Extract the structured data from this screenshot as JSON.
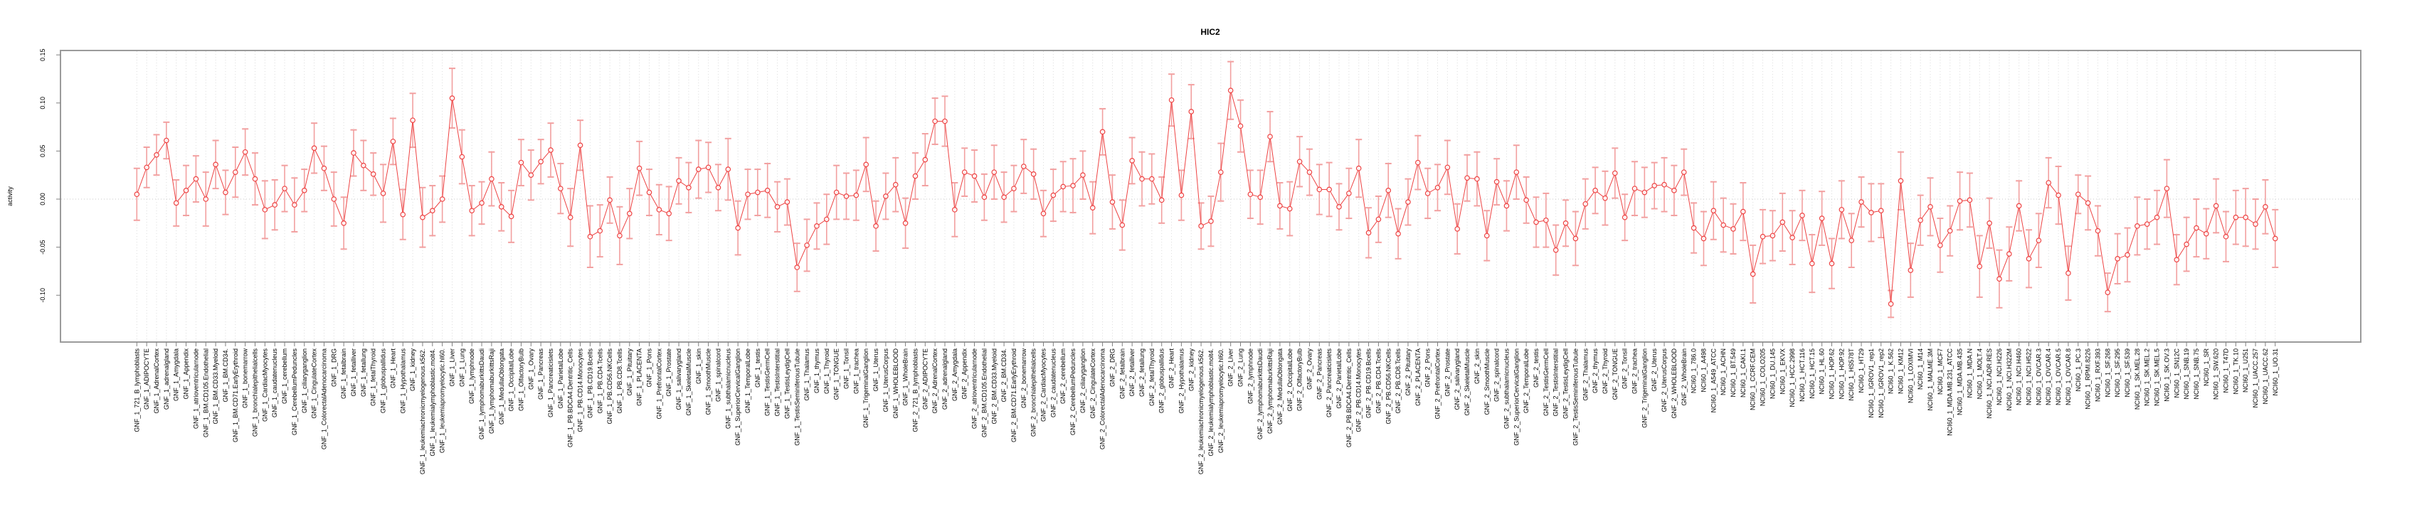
{
  "chart_data": {
    "type": "line",
    "title": "HIC2",
    "xlabel": "",
    "ylabel": "activity",
    "ylim": [
      -0.149,
      0.151
    ],
    "yticks": [
      0.15,
      0.1,
      0.05,
      0.0,
      -0.05,
      -0.1
    ],
    "ytick_labels": [
      "0.15",
      "0.10",
      "0.05",
      "0.00",
      "-0.05",
      "-0.10"
    ],
    "grid": "dotted vertical line per category, dotted horizontal line at 0",
    "legend": "none",
    "style": {
      "point_color": "#ee4343",
      "line_color": "#ee4343",
      "errorbar_color": "#f2a0a0",
      "grid_color": "#dcdcdc",
      "zero_line_color": "#c8c8c8",
      "box_color": "#9b9b9b",
      "tick_color": "#808080",
      "label_color": "#000000"
    },
    "categories": [
      "GNF_1_721_B_lymphoblasts",
      "GNF_1_ADIPOCYTE",
      "GNF_1_AdrenalCortex",
      "GNF_1_adrenalgland",
      "GNF_1_Amygdala",
      "GNF_1_Appendix",
      "GNF_1_atrioventricularnode",
      "GNF_1_BM.CD105.Endothelial",
      "GNF_1_BM.CD33.Myeloid",
      "GNF_1_BM.CD34.",
      "GNF_1_BM.CD71.EarlyErythroid",
      "GNF_1_bonemarrow",
      "GNF_1_bronchialepithelialcells",
      "GNF_1_CardiacMyocytes",
      "GNF_1_caudatenucleus",
      "GNF_1_cerebellum",
      "GNF_1_CerebellumPeduncles",
      "GNF_1_ciliaryganglion",
      "GNF_1_CingulateCortex",
      "GNF_1_ColorectalAdenocarcinoma",
      "GNF_1_DRG",
      "GNF_1_fetalbrain",
      "GNF_1_fetalliver",
      "GNF_1_fetallung",
      "GNF_1_fetalThyroid",
      "GNF_1_globuspallidus",
      "GNF_1_Heart",
      "GNF_1_Hypothalamus",
      "GNF_1_kidney",
      "GNF_1_leukemiachronicmyelogenous.k562.",
      "GNF_1_leukemialymphoblastic.molt4.",
      "GNF_1_leukemiapromyelocytic.hl60.",
      "GNF_1_Liver",
      "GNF_1_Lung",
      "GNF_1_lymphnode",
      "GNF_1_lymphomaburkittsDaudi",
      "GNF_1_lymphomaburkittsRaji",
      "GNF_1_MedullaOblongata",
      "GNF_1_OccipitalLobe",
      "GNF_1_OlfactoryBulb",
      "GNF_1_Ovary",
      "GNF_1_Pancreas",
      "GNF_1_Pancreaticislets",
      "GNF_1_ParietalLobe",
      "GNF_1_PB.BDCA4.Dentritic_Cells",
      "GNF_1_PB.CD14.Monocytes",
      "GNF_1_PB.CD19.Bcells",
      "GNF_1_PB.CD4.Tcells",
      "GNF_1_PB.CD56.NKCells",
      "GNF_1_PB.CD8.Tcells",
      "GNF_1_Pituitary",
      "GNF_1_PLACENTA",
      "GNF_1_Pons",
      "GNF_1_PrefrontalCortex",
      "GNF_1_Prostate",
      "GNF_1_salivarygland",
      "GNF_1_SkeletalMuscle",
      "GNF_1_skin",
      "GNF_1_SmoothMuscle",
      "GNF_1_spinalcord",
      "GNF_1_subthalamicnucleus",
      "GNF_1_SuperiorCervicalGanglion",
      "GNF_1_TemporalLobe",
      "GNF_1_testis",
      "GNF_1_TestisGermCell",
      "GNF_1_TestisInterstitial",
      "GNF_1_TestisLeydigCell",
      "GNF_1_TestisSeminiferousTubule",
      "GNF_1_Thalamus",
      "GNF_1_thymus",
      "GNF_1_Thyroid",
      "GNF_1_TONGUE",
      "GNF_1_Tonsil",
      "GNF_1_trachea",
      "GNF_1_TrigeminalGanglion",
      "GNF_1_Uterus",
      "GNF_1_UterusCorpus",
      "GNF_1_WHOLEBLOOD",
      "GNF_1_WholeBrain",
      "GNF_2_721_B_lymphoblasts",
      "GNF_2_ADIPOCYTE",
      "GNF_2_AdrenalCortex",
      "GNF_2_adrenalgland",
      "GNF_2_Amygdala",
      "GNF_2_Appendix",
      "GNF_2_atrioventricularnode",
      "GNF_2_BM.CD105.Endothelial",
      "GNF_2_BM.CD33.Myeloid",
      "GNF_2_BM.CD34.",
      "GNF_2_BM.CD71.EarlyErythroid",
      "GNF_2_bonemarrow",
      "GNF_2_bronchialepithelialcells",
      "GNF_2_CardiacMyocytes",
      "GNF_2_caudatenucleus",
      "GNF_2_cerebellum",
      "GNF_2_CerebellumPeduncles",
      "GNF_2_ciliaryganglion",
      "GNF_2_CingulateCortex",
      "GNF_2_ColorectalAdenocarcinoma",
      "GNF_2_DRG",
      "GNF_2_fetalbrain",
      "GNF_2_fetalliver",
      "GNF_2_fetallung",
      "GNF_2_fetalThyroid",
      "GNF_2_globuspallidus",
      "GNF_2_Heart",
      "GNF_2_Hypothalamus",
      "GNF_2_kidney",
      "GNF_2_leukemiachronicmyelogenous.k562.",
      "GNF_2_leukemialymphoblastic.molt4.",
      "GNF_2_leukemiapromyelocytic.hl60.",
      "GNF_2_Liver",
      "GNF_2_Lung",
      "GNF_2_lymphnode",
      "GNF_2_lymphomaburkittsDaudi",
      "GNF_2_lymphomaburkittsRaji",
      "GNF_2_MedullaOblongata",
      "GNF_2_OccipitalLobe",
      "GNF_2_OlfactoryBulb",
      "GNF_2_Ovary",
      "GNF_2_Pancreas",
      "GNF_2_Pancreaticislets",
      "GNF_2_ParietalLobe",
      "GNF_2_PB.BDCA4.Dentritic_Cells",
      "GNF_2_PB.CD14.Monocytes",
      "GNF_2_PB.CD19.Bcells",
      "GNF_2_PB.CD4.Tcells",
      "GNF_2_PB.CD56.NKCells",
      "GNF_2_PB.CD8.Tcells",
      "GNF_2_Pituitary",
      "GNF_2_PLACENTA",
      "GNF_2_Pons",
      "GNF_2_PrefrontalCortex",
      "GNF_2_Prostate",
      "GNF_2_salivarygland",
      "GNF_2_SkeletalMuscle",
      "GNF_2_skin",
      "GNF_2_SmoothMuscle",
      "GNF_2_spinalcord",
      "GNF_2_subthalamicnucleus",
      "GNF_2_SuperiorCervicalGanglion",
      "GNF_2_TemporalLobe",
      "GNF_2_testis",
      "GNF_2_TestisGermCell",
      "GNF_2_TestisInterstitial",
      "GNF_2_TestisLeydigCell",
      "GNF_2_TestisSeminiferousTubule",
      "GNF_2_Thalamus",
      "GNF_2_thymus",
      "GNF_2_Thyroid",
      "GNF_2_TONGUE",
      "GNF_2_Tonsil",
      "GNF_2_trachea",
      "GNF_2_TrigeminalGanglion",
      "GNF_2_Uterus",
      "GNF_2_UterusCorpus",
      "GNF_2_WHOLEBLOOD",
      "GNF_2_WholeBrain",
      "NCI60_1_786.0",
      "NCI60_1_A498",
      "NCI60_1_A549_ATCC",
      "NCI60_1_ACHN",
      "NCI60_1_BT.549",
      "NCI60_1_CAKI.1",
      "NCI60_1_CCRF.CEM",
      "NCI60_1_COLO205",
      "NCI60_1_DU.145",
      "NCI60_1_EKVX",
      "NCI60_1_HCC.2998",
      "NCI60_1_HCT.116",
      "NCI60_1_HCT.15",
      "NCI60_1_HL.60",
      "NCI60_1_HOP.62",
      "NCI60_1_HOP.92",
      "NCI60_1_HS578T",
      "NCI60_1_HT29",
      "NCI60_1_IGROV1_rep1",
      "NCI60_1_IGROV1_rep2",
      "NCI60_1_K.562",
      "NCI60_1_KM12",
      "NCI60_1_LOXIMVI",
      "NCI60_1_M14",
      "NCI60_1_MALME.3M",
      "NCI60_1_MCF7",
      "NCI60_1_MDA.MB.231_ATCC",
      "NCI60_1_MDA.MB.435",
      "NCI60_1_MDA.N",
      "NCI60_1_MOLT.4",
      "NCI60_1_NCI.ADR.RES",
      "NCI60_1_NCI.H226",
      "NCI60_1_NCI.H322M",
      "NCI60_1_NCI.H460",
      "NCI60_1_NCI.H522",
      "NCI60_1_OVCAR.3",
      "NCI60_1_OVCAR.4",
      "NCI60_1_OVCAR.5",
      "NCI60_1_OVCAR.8",
      "NCI60_1_PC.3",
      "NCI60_1_RPMI.8226",
      "NCI60_1_RXF.393",
      "NCI60_1_SF.268",
      "NCI60_1_SF.295",
      "NCI60_1_SF.539",
      "NCI60_1_SK.MEL.28",
      "NCI60_1_SK.MEL.2",
      "NCI60_1_SK.MEL.5",
      "NCI60_1_SK.OV.3",
      "NCI60_1_SN12C",
      "NCI60_1_SNB.19",
      "NCI60_1_SNB.75",
      "NCI60_1_SR",
      "NCI60_1_SW.620",
      "NCI60_1_T47D",
      "NCI60_1_TK.10",
      "NCI60_1_U251",
      "NCI60_1_UACC.257",
      "NCI60_1_UACC.62",
      "NCI60_1_UO.31"
    ],
    "series": [
      {
        "name": "activity",
        "values": [
          0.005,
          0.033,
          0.046,
          0.061,
          -0.004,
          0.009,
          0.021,
          0.0,
          0.036,
          0.007,
          0.028,
          0.049,
          0.021,
          -0.011,
          -0.006,
          0.011,
          -0.006,
          0.009,
          0.053,
          0.032,
          0.0,
          -0.025,
          0.048,
          0.035,
          0.026,
          0.006,
          0.06,
          -0.016,
          0.082,
          -0.019,
          -0.012,
          0.0,
          0.105,
          0.044,
          -0.012,
          -0.004,
          0.021,
          -0.008,
          -0.018,
          0.038,
          0.025,
          0.039,
          0.051,
          0.011,
          -0.019,
          0.056,
          -0.039,
          -0.033,
          -0.001,
          -0.038,
          -0.015,
          0.032,
          0.007,
          -0.011,
          -0.015,
          0.019,
          0.012,
          0.031,
          0.033,
          0.012,
          0.031,
          -0.03,
          0.005,
          0.007,
          0.009,
          -0.008,
          -0.003,
          -0.071,
          -0.048,
          -0.028,
          -0.021,
          0.007,
          0.003,
          0.004,
          0.036,
          -0.028,
          0.003,
          0.015,
          -0.025,
          0.024,
          0.041,
          0.081,
          0.081,
          -0.011,
          0.028,
          0.024,
          0.002,
          0.028,
          0.002,
          0.011,
          0.034,
          0.026,
          -0.015,
          0.004,
          0.013,
          0.014,
          0.025,
          -0.009,
          0.07,
          -0.003,
          -0.027,
          0.04,
          0.021,
          0.021,
          -0.001,
          0.103,
          0.004,
          0.091,
          -0.028,
          -0.023,
          0.028,
          0.113,
          0.076,
          0.005,
          0.002,
          0.065,
          -0.007,
          -0.01,
          0.039,
          0.028,
          0.01,
          0.01,
          -0.008,
          0.006,
          0.032,
          -0.035,
          -0.021,
          0.009,
          -0.036,
          -0.003,
          0.038,
          0.006,
          0.012,
          0.033,
          -0.031,
          0.022,
          0.021,
          -0.038,
          0.018,
          -0.007,
          0.028,
          -0.001,
          -0.024,
          -0.022,
          -0.053,
          -0.025,
          -0.041,
          -0.005,
          0.009,
          0.001,
          0.027,
          -0.019,
          0.011,
          0.007,
          0.014,
          0.015,
          0.009,
          0.028,
          -0.03,
          -0.041,
          -0.012,
          -0.027,
          -0.031,
          -0.013,
          -0.078,
          -0.039,
          -0.038,
          -0.024,
          -0.04,
          -0.017,
          -0.067,
          -0.02,
          -0.067,
          -0.011,
          -0.043,
          -0.003,
          -0.014,
          -0.012,
          -0.109,
          0.019,
          -0.074,
          -0.022,
          -0.008,
          -0.048,
          -0.033,
          -0.002,
          -0.001,
          -0.07,
          -0.025,
          -0.083,
          -0.057,
          -0.007,
          -0.062,
          -0.043,
          0.017,
          0.004,
          -0.077,
          0.005,
          -0.004,
          -0.033,
          -0.097,
          -0.062,
          -0.058,
          -0.028,
          -0.026,
          -0.019,
          0.011,
          -0.063,
          -0.047,
          -0.03,
          -0.036,
          -0.007,
          -0.039,
          -0.019,
          -0.019,
          -0.026,
          -0.008,
          -0.041
        ],
        "error_halfwidths": [
          0.027,
          0.021,
          0.021,
          0.019,
          0.024,
          0.026,
          0.024,
          0.028,
          0.025,
          0.023,
          0.026,
          0.024,
          0.027,
          0.03,
          0.026,
          0.024,
          0.028,
          0.022,
          0.026,
          0.023,
          0.028,
          0.027,
          0.024,
          0.026,
          0.022,
          0.03,
          0.024,
          0.026,
          0.028,
          0.031,
          0.026,
          0.024,
          0.031,
          0.028,
          0.026,
          0.022,
          0.028,
          0.025,
          0.027,
          0.024,
          0.026,
          0.023,
          0.028,
          0.026,
          0.03,
          0.026,
          0.032,
          0.027,
          0.024,
          0.03,
          0.026,
          0.028,
          0.024,
          0.026,
          0.028,
          0.024,
          0.026,
          0.03,
          0.026,
          0.024,
          0.032,
          0.028,
          0.026,
          0.024,
          0.028,
          0.026,
          0.024,
          0.025,
          0.027,
          0.024,
          0.026,
          0.028,
          0.024,
          0.026,
          0.028,
          0.026,
          0.024,
          0.028,
          0.026,
          0.024,
          0.027,
          0.024,
          0.026,
          0.028,
          0.025,
          0.027,
          0.024,
          0.028,
          0.026,
          0.024,
          0.028,
          0.026,
          0.024,
          0.027,
          0.026,
          0.028,
          0.025,
          0.027,
          0.024,
          0.028,
          0.026,
          0.024,
          0.028,
          0.026,
          0.024,
          0.027,
          0.026,
          0.028,
          0.024,
          0.026,
          0.03,
          0.03,
          0.027,
          0.025,
          0.028,
          0.026,
          0.024,
          0.028,
          0.026,
          0.024,
          0.026,
          0.028,
          0.024,
          0.026,
          0.03,
          0.026,
          0.024,
          0.028,
          0.026,
          0.024,
          0.028,
          0.026,
          0.024,
          0.028,
          0.026,
          0.024,
          0.028,
          0.026,
          0.024,
          0.026,
          0.028,
          0.024,
          0.026,
          0.028,
          0.026,
          0.024,
          0.028,
          0.026,
          0.024,
          0.028,
          0.026,
          0.024,
          0.028,
          0.026,
          0.024,
          0.028,
          0.026,
          0.024,
          0.026,
          0.028,
          0.03,
          0.028,
          0.026,
          0.03,
          0.03,
          0.028,
          0.026,
          0.03,
          0.028,
          0.026,
          0.03,
          0.028,
          0.026,
          0.03,
          0.028,
          0.026,
          0.03,
          0.028,
          0.014,
          0.03,
          0.028,
          0.026,
          0.03,
          0.028,
          0.026,
          0.03,
          0.028,
          0.032,
          0.026,
          0.03,
          0.028,
          0.026,
          0.03,
          0.028,
          0.026,
          0.03,
          0.028,
          0.02,
          0.028,
          0.026,
          0.02,
          0.026,
          0.028,
          0.03,
          0.026,
          0.028,
          0.03,
          0.026,
          0.028,
          0.03,
          0.026,
          0.028,
          0.026,
          0.028,
          0.03,
          0.026,
          0.028,
          0.03
        ]
      }
    ]
  }
}
